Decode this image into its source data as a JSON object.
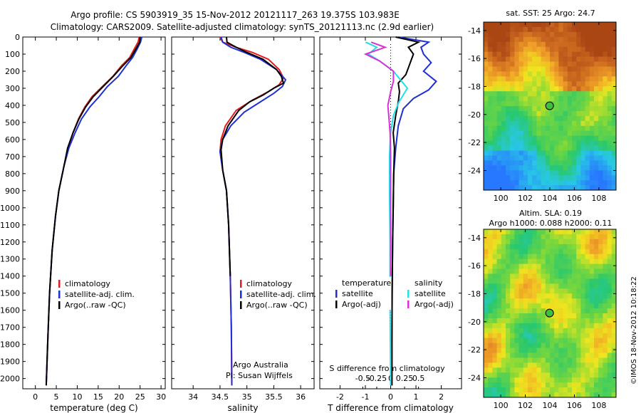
{
  "header": {
    "line1": "Argo profile: CS 5903919_35 15-Nov-2012 20121117_263 19.375S 103.983E",
    "line2": "Climatology: CARS2009. Satellite-adjusted climatology: synTS_20121113.nc (2.9d earlier)"
  },
  "colors": {
    "red": "#e41a1c",
    "blue": "#1f2fd6",
    "black": "#000000",
    "cyan": "#1fe0e8",
    "magenta": "#d930d9"
  },
  "chart_data": [
    {
      "type": "line",
      "name": "temperature",
      "xlabel": "temperature (deg C)",
      "xlim": [
        -3,
        31
      ],
      "ylim": [
        2060,
        0
      ],
      "xticks": [
        0,
        5,
        10,
        15,
        20,
        25,
        30
      ],
      "yticks": [
        0,
        100,
        200,
        300,
        400,
        500,
        600,
        700,
        800,
        900,
        1000,
        1100,
        1200,
        1300,
        1400,
        1500,
        1600,
        1700,
        1800,
        1900,
        2000
      ],
      "legend": [
        "climatology",
        "satellite-adj. clim.",
        "Argo(..raw -QC)"
      ],
      "series": [
        {
          "name": "climatology",
          "color": "red",
          "pts": [
            [
              24.8,
              0
            ],
            [
              24.5,
              30
            ],
            [
              23.6,
              70
            ],
            [
              22.5,
              120
            ],
            [
              20.5,
              170
            ],
            [
              18.5,
              230
            ],
            [
              16.0,
              290
            ],
            [
              13.5,
              350
            ],
            [
              11.8,
              410
            ],
            [
              10.3,
              480
            ],
            [
              9.0,
              560
            ],
            [
              7.8,
              650
            ],
            [
              6.8,
              760
            ],
            [
              5.6,
              900
            ],
            [
              4.8,
              1050
            ],
            [
              4.0,
              1250
            ],
            [
              3.4,
              1500
            ],
            [
              3.0,
              1750
            ],
            [
              2.6,
              2040
            ]
          ]
        },
        {
          "name": "satellite-adj. clim.",
          "color": "blue",
          "pts": [
            [
              25.4,
              0
            ],
            [
              25.1,
              30
            ],
            [
              24.3,
              70
            ],
            [
              23.2,
              120
            ],
            [
              21.6,
              170
            ],
            [
              19.8,
              230
            ],
            [
              17.2,
              290
            ],
            [
              15.2,
              350
            ],
            [
              13.0,
              410
            ],
            [
              11.0,
              480
            ],
            [
              9.5,
              560
            ],
            [
              8.0,
              650
            ],
            [
              6.8,
              760
            ],
            [
              5.6,
              900
            ],
            [
              4.8,
              1050
            ],
            [
              4.0,
              1250
            ],
            [
              3.4,
              1500
            ],
            [
              3.0,
              1750
            ],
            [
              2.6,
              2040
            ]
          ]
        },
        {
          "name": "Argo(..raw -QC)",
          "color": "black",
          "pts": [
            [
              25.0,
              0
            ],
            [
              24.9,
              30
            ],
            [
              24.0,
              70
            ],
            [
              22.8,
              120
            ],
            [
              20.8,
              170
            ],
            [
              18.6,
              230
            ],
            [
              16.2,
              290
            ],
            [
              13.8,
              350
            ],
            [
              12.0,
              410
            ],
            [
              10.4,
              480
            ],
            [
              9.0,
              560
            ],
            [
              7.7,
              650
            ],
            [
              6.8,
              760
            ],
            [
              5.6,
              900
            ],
            [
              4.8,
              1050
            ],
            [
              4.0,
              1250
            ],
            [
              3.4,
              1500
            ],
            [
              3.0,
              1750
            ],
            [
              2.6,
              2040
            ]
          ]
        }
      ]
    },
    {
      "type": "line",
      "name": "salinity",
      "xlabel": "salinity",
      "xlim": [
        33.6,
        36.25
      ],
      "ylim": [
        2060,
        0
      ],
      "xticks": [
        34,
        34.5,
        35,
        35.5,
        36
      ],
      "xticklabels": [
        "34",
        "34.5",
        "35",
        "35.5",
        "36"
      ],
      "legend": [
        "climatology",
        "satellite-adj. clim.",
        "Argo(..raw -QC)"
      ],
      "credit1": "Argo Australia",
      "credit2": "PI: Susan Wijffels",
      "series": [
        {
          "name": "climatology",
          "color": "red",
          "pts": [
            [
              34.5,
              0
            ],
            [
              34.55,
              30
            ],
            [
              34.8,
              60
            ],
            [
              35.1,
              90
            ],
            [
              35.4,
              130
            ],
            [
              35.6,
              190
            ],
            [
              35.68,
              240
            ],
            [
              35.6,
              280
            ],
            [
              35.4,
              320
            ],
            [
              35.1,
              370
            ],
            [
              34.8,
              430
            ],
            [
              34.6,
              520
            ],
            [
              34.52,
              600
            ],
            [
              34.5,
              670
            ],
            [
              34.55,
              780
            ],
            [
              34.62,
              900
            ],
            [
              34.66,
              1100
            ],
            [
              34.69,
              1400
            ],
            [
              34.71,
              1700
            ],
            [
              34.72,
              2040
            ]
          ]
        },
        {
          "name": "satellite-adj. clim.",
          "color": "blue",
          "pts": [
            [
              34.52,
              0
            ],
            [
              34.55,
              30
            ],
            [
              34.7,
              60
            ],
            [
              34.95,
              90
            ],
            [
              35.25,
              130
            ],
            [
              35.55,
              190
            ],
            [
              35.72,
              250
            ],
            [
              35.66,
              290
            ],
            [
              35.5,
              330
            ],
            [
              35.25,
              380
            ],
            [
              34.95,
              440
            ],
            [
              34.7,
              520
            ],
            [
              34.55,
              600
            ],
            [
              34.5,
              670
            ],
            [
              34.55,
              780
            ],
            [
              34.62,
              900
            ],
            [
              34.66,
              1100
            ],
            [
              34.69,
              1400
            ],
            [
              34.71,
              1700
            ],
            [
              34.72,
              2040
            ]
          ]
        },
        {
          "name": "Argo(..raw -QC)",
          "color": "black",
          "pts": [
            [
              34.62,
              0
            ],
            [
              34.63,
              30
            ],
            [
              34.8,
              60
            ],
            [
              35.0,
              90
            ],
            [
              35.3,
              130
            ],
            [
              35.55,
              190
            ],
            [
              35.64,
              230
            ],
            [
              35.68,
              270
            ],
            [
              35.5,
              300
            ],
            [
              35.3,
              340
            ],
            [
              35.05,
              380
            ],
            [
              34.85,
              430
            ],
            [
              34.65,
              520
            ],
            [
              34.55,
              600
            ],
            [
              34.52,
              660
            ],
            [
              34.55,
              780
            ],
            [
              34.62,
              900
            ],
            [
              34.66,
              1100
            ],
            [
              34.69,
              1400
            ]
          ]
        }
      ]
    },
    {
      "type": "line",
      "name": "differences",
      "xlabel": "T difference from climatology",
      "xlim": [
        -2.8,
        2.8
      ],
      "ylim": [
        2060,
        0
      ],
      "xticks": [
        -2,
        -1,
        0,
        1,
        2
      ],
      "sticks": [
        -0.5,
        -0.25,
        0,
        0.25,
        0.5
      ],
      "sticklabels": [
        "-0.5",
        "-0.25",
        "0",
        "0.25",
        "0.5"
      ],
      "slabel": "S difference from climatology",
      "legend_title_t": "temperature",
      "legend_title_s": "salinity",
      "legend_t": [
        "satellite",
        "Argo(-adj)"
      ],
      "legend_s": [
        "satellite",
        "Argo(-adj)"
      ],
      "series": [
        {
          "name": "T satellite",
          "color": "blue",
          "pts": [
            [
              0.3,
              0
            ],
            [
              1.5,
              30
            ],
            [
              1.2,
              60
            ],
            [
              1.3,
              100
            ],
            [
              1.6,
              150
            ],
            [
              1.3,
              200
            ],
            [
              1.8,
              260
            ],
            [
              1.5,
              310
            ],
            [
              0.9,
              360
            ],
            [
              0.5,
              420
            ],
            [
              0.3,
              520
            ],
            [
              0.2,
              650
            ],
            [
              0.12,
              800
            ],
            [
              0.1,
              1000
            ],
            [
              0.08,
              1200
            ],
            [
              0.06,
              1500
            ],
            [
              0.05,
              1800
            ],
            [
              0.05,
              2040
            ]
          ]
        },
        {
          "name": "T Argo",
          "color": "black",
          "pts": [
            [
              0.2,
              0
            ],
            [
              1.1,
              30
            ],
            [
              0.7,
              60
            ],
            [
              0.9,
              100
            ],
            [
              0.8,
              140
            ],
            [
              0.7,
              180
            ],
            [
              0.6,
              220
            ],
            [
              0.3,
              270
            ],
            [
              0.35,
              320
            ],
            [
              0.3,
              380
            ],
            [
              0.2,
              460
            ],
            [
              0.1,
              560
            ],
            [
              0.15,
              650
            ],
            [
              0.12,
              800
            ],
            [
              0.1,
              1000
            ],
            [
              0.08,
              1200
            ],
            [
              0.06,
              1500
            ],
            [
              0.05,
              1800
            ],
            [
              0.05,
              2040
            ]
          ]
        },
        {
          "name": "S satellite",
          "color": "cyan",
          "pts": [
            [
              -0.45,
              30
            ],
            [
              -0.25,
              60
            ],
            [
              -0.4,
              100
            ],
            [
              -0.2,
              140
            ],
            [
              0.05,
              200
            ],
            [
              0.15,
              240
            ],
            [
              0.3,
              300
            ],
            [
              0.15,
              380
            ],
            [
              0.05,
              460
            ],
            [
              0.0,
              560
            ],
            [
              -0.02,
              700
            ],
            [
              -0.02,
              900
            ],
            [
              -0.01,
              1200
            ],
            [
              -0.01,
              1600
            ],
            [
              0.0,
              2040
            ]
          ]
        },
        {
          "name": "S Argo",
          "color": "magenta",
          "pts": [
            [
              -0.35,
              30
            ],
            [
              -0.1,
              60
            ],
            [
              -0.45,
              100
            ],
            [
              -0.2,
              140
            ],
            [
              0.05,
              200
            ],
            [
              0.05,
              260
            ],
            [
              0.0,
              320
            ],
            [
              -0.05,
              400
            ],
            [
              -0.03,
              480
            ],
            [
              -0.01,
              560
            ],
            [
              0.0,
              700
            ],
            [
              0.0,
              900
            ],
            [
              0.0,
              1200
            ],
            [
              0.0,
              1400
            ]
          ]
        }
      ]
    },
    {
      "type": "heatmap",
      "name": "sst-map",
      "title": "sat. SST: 25 Argo: 24.7",
      "xticks": [
        100,
        102,
        104,
        106,
        108
      ],
      "yticks": [
        -14,
        -16,
        -18,
        -20,
        -22,
        -24
      ],
      "xlim": [
        98.6,
        109.4
      ],
      "ylim": [
        -25.4,
        -13.4
      ],
      "marker": {
        "lon": 103.98,
        "lat": -19.38
      }
    },
    {
      "type": "heatmap",
      "name": "sla-map",
      "title1": "Altim. SLA: 0.19",
      "title2": "Argo h1000: 0.088 h2000: 0.11",
      "xticks": [
        100,
        102,
        104,
        106,
        108
      ],
      "yticks": [
        -14,
        -16,
        -18,
        -20,
        -22,
        -24
      ],
      "xlim": [
        98.6,
        109.4
      ],
      "ylim": [
        -25.4,
        -13.4
      ],
      "marker": {
        "lon": 103.98,
        "lat": -19.38
      }
    }
  ],
  "footer": {
    "stamp": "©IMOS 18-Nov-2012 10:18:22"
  }
}
